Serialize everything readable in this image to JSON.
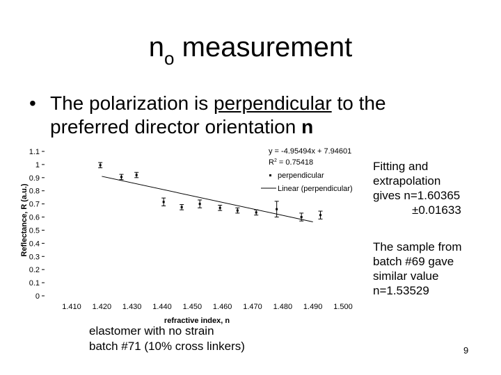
{
  "slide": {
    "title_main": "n",
    "title_sub": "o",
    "title_rest": " measurement",
    "bullet_symbol": "•",
    "bullet_pre": "The polarization is ",
    "bullet_underlined": "perpendicular",
    "bullet_mid": " to the preferred director orientation ",
    "bullet_bold": "n",
    "fit_note_l1": "Fitting and",
    "fit_note_l2": "extrapolation",
    "fit_note_l3": "gives n=1.60365",
    "fit_note_l4": "±0.01633",
    "sample_note_l1": "The sample from",
    "sample_note_l2": "batch #69 gave",
    "sample_note_l3": "similar value",
    "sample_note_l4": "n=1.53529",
    "footnote_l1": "elastomer with no strain",
    "footnote_l2": "batch #71 (10% cross linkers)",
    "page_number": "9"
  },
  "chart_data": {
    "type": "scatter",
    "xlabel": "refractive index, n",
    "ylabel": "Reflectance, R (a.u.)",
    "xlim": [
      1.41,
      1.5
    ],
    "ylim": [
      0,
      1.1
    ],
    "x_ticks": [
      "1.410",
      "1.420",
      "1.430",
      "1.440",
      "1.450",
      "1.460",
      "1.470",
      "1.480",
      "1.490",
      "1.500"
    ],
    "y_ticks": [
      "0",
      "0.1",
      "0.2",
      "0.3",
      "0.4",
      "0.5",
      "0.6",
      "0.7",
      "0.8",
      "0.9",
      "1",
      "1.1"
    ],
    "equation": "y = -4.95494x + 7.94601",
    "r2_label": "R",
    "r2_sup": "2",
    "r2_value": " = 0.75418",
    "legend": [
      {
        "label": "perpendicular",
        "kind": "marker"
      },
      {
        "label": "Linear (perpendicular)",
        "kind": "line"
      }
    ],
    "series": [
      {
        "name": "perpendicular",
        "x": [
          1.4195,
          1.4265,
          1.4315,
          1.4405,
          1.4465,
          1.4525,
          1.4592,
          1.465,
          1.4712,
          1.478,
          1.4862,
          1.4925
        ],
        "y": [
          0.995,
          0.905,
          0.92,
          0.715,
          0.675,
          0.7,
          0.67,
          0.65,
          0.635,
          0.66,
          0.6,
          0.615
        ],
        "err": [
          0.02,
          0.02,
          0.02,
          0.03,
          0.02,
          0.03,
          0.02,
          0.02,
          0.02,
          0.06,
          0.03,
          0.03
        ]
      }
    ],
    "trendline": {
      "slope": -4.95494,
      "intercept": 7.94601,
      "x_range": [
        1.42,
        1.49
      ]
    },
    "grid": false
  }
}
